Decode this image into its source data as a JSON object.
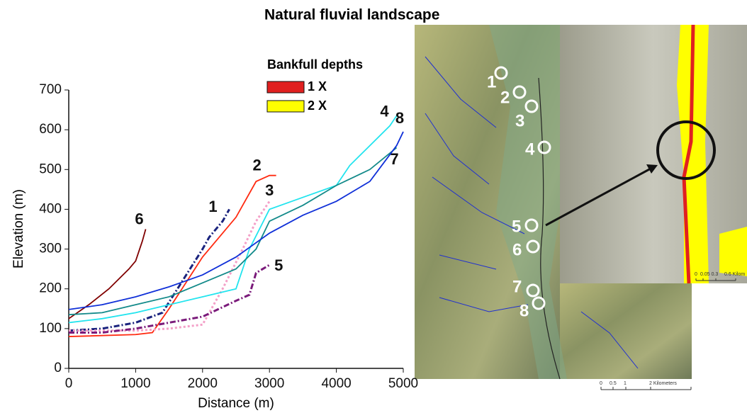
{
  "chart_data": {
    "type": "line",
    "title": "Natural fluvial landscape",
    "xlabel": "Distance (m)",
    "ylabel": "Elevation (m)",
    "xlim": [
      0,
      5000
    ],
    "ylim": [
      0,
      700
    ],
    "xticks": [
      0,
      1000,
      2000,
      3000,
      4000,
      5000
    ],
    "yticks": [
      0,
      100,
      200,
      300,
      400,
      500,
      600,
      700
    ],
    "grid": false,
    "series": [
      {
        "name": "1",
        "color": "#1a237e",
        "dash": "dashdot",
        "x": [
          0,
          500,
          1000,
          1400,
          1700,
          2000,
          2100,
          2300,
          2400
        ],
        "values": [
          95,
          100,
          115,
          140,
          220,
          300,
          330,
          370,
          400
        ]
      },
      {
        "name": "2",
        "color": "#ff2a10",
        "dash": "solid",
        "x": [
          0,
          1000,
          1250,
          1500,
          2000,
          2500,
          2800,
          3000,
          3100
        ],
        "values": [
          80,
          85,
          90,
          150,
          280,
          380,
          470,
          485,
          485
        ]
      },
      {
        "name": "3",
        "color": "#f4a0c8",
        "dash": "dotted",
        "x": [
          0,
          500,
          1000,
          1500,
          2000,
          2300,
          2600,
          2800,
          3000
        ],
        "values": [
          95,
          95,
          95,
          100,
          110,
          200,
          300,
          370,
          420
        ]
      },
      {
        "name": "4",
        "color": "#22e4ee",
        "dash": "solid",
        "x": [
          0,
          500,
          1000,
          1500,
          2000,
          2500,
          2700,
          3000,
          3500,
          4000,
          4200,
          4500,
          4800,
          4900
        ],
        "values": [
          115,
          125,
          140,
          160,
          180,
          200,
          300,
          400,
          430,
          460,
          510,
          560,
          610,
          635
        ]
      },
      {
        "name": "5",
        "color": "#7a1a7a",
        "dash": "dashdot",
        "x": [
          0,
          500,
          1000,
          1500,
          2000,
          2500,
          2700,
          2800,
          3000
        ],
        "values": [
          90,
          90,
          100,
          115,
          130,
          170,
          185,
          240,
          260
        ]
      },
      {
        "name": "6",
        "color": "#800000",
        "dash": "solid",
        "x": [
          0,
          300,
          600,
          900,
          1000,
          1100,
          1150
        ],
        "values": [
          125,
          160,
          200,
          250,
          270,
          320,
          350
        ]
      },
      {
        "name": "7",
        "color": "#138a8a",
        "dash": "solid",
        "x": [
          0,
          500,
          1000,
          1500,
          2000,
          2500,
          2800,
          3000,
          3500,
          4000,
          4500,
          4900
        ],
        "values": [
          135,
          140,
          160,
          180,
          215,
          250,
          300,
          370,
          410,
          460,
          500,
          555
        ]
      },
      {
        "name": "8",
        "color": "#1030d8",
        "dash": "solid",
        "x": [
          0,
          500,
          1000,
          1500,
          2000,
          2500,
          3000,
          3500,
          4000,
          4500,
          4900,
          5000
        ],
        "values": [
          148,
          160,
          180,
          205,
          235,
          280,
          340,
          385,
          420,
          470,
          560,
          595
        ]
      }
    ],
    "legend": {
      "title": "Bankfull depths",
      "items": [
        {
          "label": "1 X",
          "color": "#e02020"
        },
        {
          "label": "2 X",
          "color": "#ffff00"
        }
      ]
    }
  },
  "map": {
    "sites": [
      "1",
      "2",
      "3",
      "4",
      "5",
      "6",
      "7",
      "8"
    ],
    "scale": [
      "0",
      "0.5",
      "1",
      "2 Kilometers"
    ],
    "inset_scale": [
      "0",
      "0.05 0.3",
      "0.6 Kilom"
    ]
  }
}
